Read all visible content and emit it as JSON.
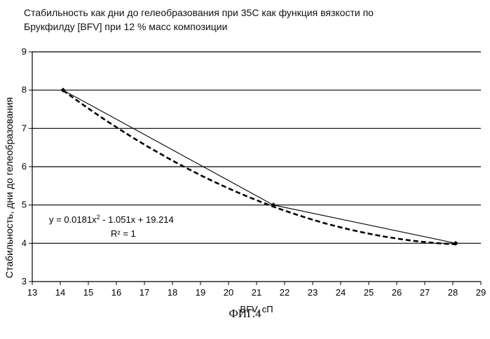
{
  "chart_data": {
    "type": "scatter",
    "title_lines": [
      "Стабильность как дни до гелеобразования при 35С как функция вязкости по",
      "Брукфилду [BFV] при 12 % масс композиции"
    ],
    "xlabel": "BFV, сП",
    "ylabel": "Стабильность, дни до гелеобразования",
    "xlim": [
      13,
      29
    ],
    "ylim": [
      3,
      9
    ],
    "xticks": [
      "13",
      "14",
      "15",
      "16",
      "17",
      "18",
      "19",
      "20",
      "21",
      "22",
      "23",
      "24",
      "25",
      "26",
      "27",
      "28",
      "29"
    ],
    "yticks": [
      "3",
      "4",
      "5",
      "6",
      "7",
      "8",
      "9"
    ],
    "grid": "horizontal",
    "series": [
      {
        "x": [
          14.1,
          21.6,
          28.1
        ],
        "y": [
          8,
          5,
          4
        ],
        "style": "solid-with-markers"
      }
    ],
    "trendline": {
      "kind": "polynomial-2",
      "coefficients": [
        0.0181,
        -1.051,
        19.214
      ],
      "x_range": [
        14.1,
        28.1
      ],
      "style": "dashed",
      "equation_text_prefix": "y = 0.0181x",
      "equation_text_exp": "2",
      "equation_text_suffix": " - 1.051x + 19.214",
      "r2_text": "R² = 1"
    },
    "colors": {
      "line": "#000000",
      "grid": "#000000",
      "background": "#ffffff"
    }
  },
  "figure_caption": "ФИГ.4"
}
